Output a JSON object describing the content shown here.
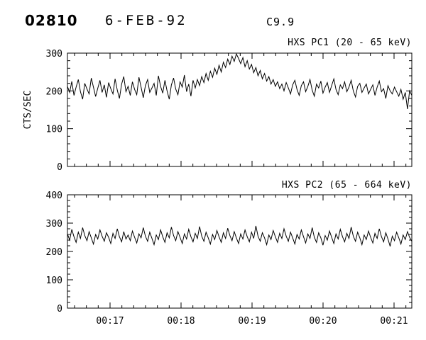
{
  "header": {
    "id": "02810",
    "date": "6-FEB-92",
    "goes_class": "C9.9"
  },
  "x_axis": {
    "start_min": 16.4,
    "end_min": 21.25,
    "tick_values": [
      17,
      18,
      19,
      20,
      21
    ],
    "tick_labels": [
      "00:17",
      "00:18",
      "00:19",
      "00:20",
      "00:21"
    ]
  },
  "chart_data": [
    {
      "type": "line",
      "title": "HXS PC1 (20 - 65 keV)",
      "ylabel": "CTS/SEC",
      "ylim": [
        0,
        300
      ],
      "yticks": [
        0,
        100,
        200,
        300
      ],
      "yminor": 20,
      "grid": false,
      "legend": "none",
      "values": [
        212,
        196,
        225,
        188,
        210,
        230,
        198,
        178,
        220,
        205,
        192,
        234,
        210,
        185,
        207,
        228,
        196,
        216,
        183,
        222,
        206,
        192,
        232,
        202,
        180,
        218,
        238,
        198,
        212,
        188,
        224,
        204,
        190,
        236,
        210,
        182,
        214,
        230,
        196,
        208,
        220,
        188,
        240,
        212,
        194,
        228,
        200,
        178,
        216,
        234,
        205,
        190,
        224,
        210,
        242,
        198,
        218,
        186,
        228,
        208,
        230,
        214,
        238,
        222,
        246,
        228,
        252,
        236,
        260,
        244,
        268,
        250,
        276,
        262,
        284,
        270,
        292,
        278,
        298,
        286,
        272,
        288,
        264,
        280,
        258,
        270,
        248,
        262,
        240,
        254,
        232,
        246,
        226,
        238,
        218,
        230,
        212,
        224,
        206,
        218,
        200,
        222,
        208,
        192,
        216,
        228,
        204,
        188,
        214,
        224,
        198,
        212,
        230,
        202,
        186,
        218,
        208,
        226,
        194,
        210,
        222,
        196,
        214,
        232,
        204,
        190,
        216,
        206,
        224,
        198,
        210,
        228,
        200,
        184,
        212,
        220,
        196,
        208,
        218,
        192,
        204,
        216,
        188,
        210,
        226,
        198,
        206,
        180,
        214,
        200,
        192,
        210,
        198,
        186,
        204,
        178,
        196,
        152,
        200,
        188
      ]
    },
    {
      "type": "line",
      "title": "HXS PC2 (65 - 664 keV)",
      "ylabel": "",
      "ylim": [
        0,
        400
      ],
      "yticks": [
        0,
        100,
        200,
        300,
        400
      ],
      "yminor": 20,
      "grid": false,
      "legend": "none",
      "values": [
        262,
        240,
        278,
        252,
        232,
        268,
        246,
        284,
        256,
        238,
        270,
        248,
        226,
        260,
        244,
        276,
        254,
        236,
        266,
        250,
        228,
        264,
        246,
        280,
        252,
        234,
        270,
        244,
        258,
        238,
        272,
        250,
        230,
        262,
        248,
        284,
        254,
        236,
        268,
        246,
        224,
        258,
        242,
        276,
        252,
        232,
        266,
        248,
        286,
        256,
        238,
        270,
        250,
        228,
        262,
        244,
        278,
        252,
        234,
        264,
        246,
        288,
        254,
        236,
        268,
        248,
        226,
        260,
        242,
        274,
        252,
        232,
        266,
        246,
        282,
        256,
        238,
        270,
        248,
        228,
        262,
        244,
        276,
        252,
        234,
        268,
        246,
        290,
        254,
        236,
        266,
        248,
        224,
        258,
        242,
        274,
        252,
        232,
        264,
        246,
        280,
        254,
        236,
        268,
        248,
        226,
        260,
        244,
        276,
        252,
        230,
        262,
        246,
        284,
        250,
        232,
        266,
        248,
        222,
        256,
        240,
        272,
        250,
        228,
        262,
        244,
        278,
        252,
        234,
        264,
        246,
        286,
        254,
        236,
        268,
        248,
        224,
        258,
        242,
        272,
        250,
        230,
        264,
        246,
        280,
        252,
        234,
        266,
        244,
        218,
        254,
        238,
        268,
        248,
        226,
        258,
        242,
        270,
        250,
        236
      ]
    }
  ]
}
